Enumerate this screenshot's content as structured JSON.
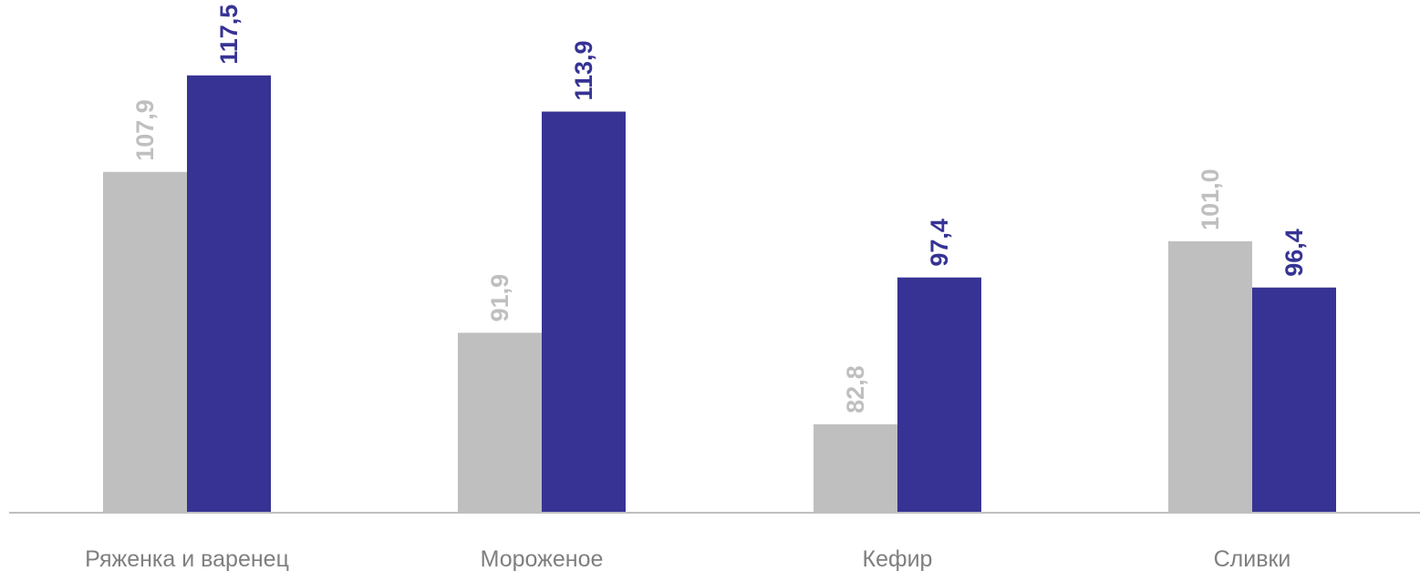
{
  "chart_data": {
    "type": "bar",
    "categories": [
      "Ряженка и варенец",
      "Мороженое",
      "Кефир",
      "Сливки"
    ],
    "series": [
      {
        "values": [
          107.9,
          91.9,
          82.8,
          101.0
        ],
        "labels": [
          "107,9",
          "91,9",
          "82,8",
          "101,0"
        ],
        "color": "#bfbfbf"
      },
      {
        "values": [
          117.5,
          113.9,
          97.4,
          96.4
        ],
        "labels": [
          "117,5",
          "113,9",
          "97,4",
          "96,4"
        ],
        "color": "#363394"
      }
    ],
    "title": "",
    "xlabel": "",
    "ylabel": "",
    "ylim": [
      74,
      125
    ],
    "grid": false,
    "legend": "none",
    "axis_color": "#bfbfbf"
  }
}
